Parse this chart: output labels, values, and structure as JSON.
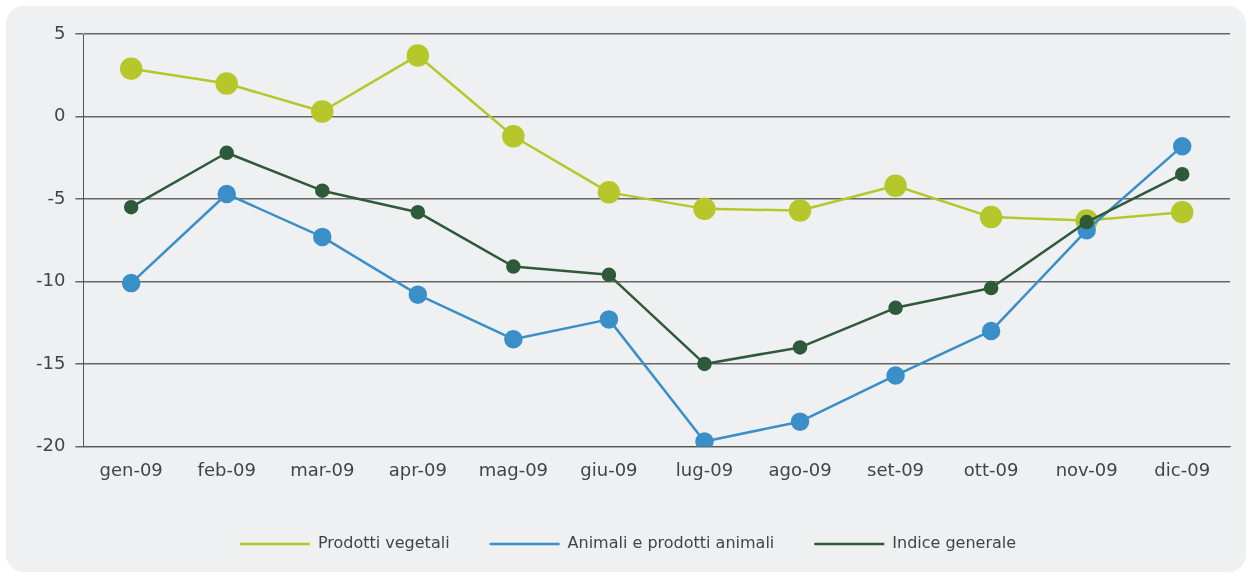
{
  "chart_data": {
    "type": "line",
    "categories": [
      "gen-09",
      "feb-09",
      "mar-09",
      "apr-09",
      "mag-09",
      "giu-09",
      "lug-09",
      "ago-09",
      "set-09",
      "ott-09",
      "nov-09",
      "dic-09"
    ],
    "series": [
      {
        "name": "Prodotti vegetali",
        "color": "#b5c72b",
        "values": [
          2.9,
          2.0,
          0.3,
          3.7,
          -1.2,
          -4.6,
          -5.6,
          -5.7,
          -4.2,
          -6.1,
          -6.3,
          -5.8
        ]
      },
      {
        "name": "Animali e prodotti animali",
        "color": "#3a8fc8",
        "values": [
          -10.1,
          -4.7,
          -7.3,
          -10.8,
          -13.5,
          -12.3,
          -19.7,
          -18.5,
          -15.7,
          -13.0,
          -6.9,
          -1.8
        ]
      },
      {
        "name": "Indice generale",
        "color": "#2f5a3a",
        "values": [
          -5.5,
          -2.2,
          -4.5,
          -5.8,
          -9.1,
          -9.6,
          -15.0,
          -14.0,
          -11.6,
          -10.4,
          -6.4,
          -3.5
        ]
      }
    ],
    "ylim": [
      -20,
      5
    ],
    "yticks": [
      -20,
      -15,
      -10,
      -5,
      0,
      5
    ],
    "grid": "y",
    "legend": "bottom",
    "marker": "circle",
    "line_style": "solid"
  }
}
